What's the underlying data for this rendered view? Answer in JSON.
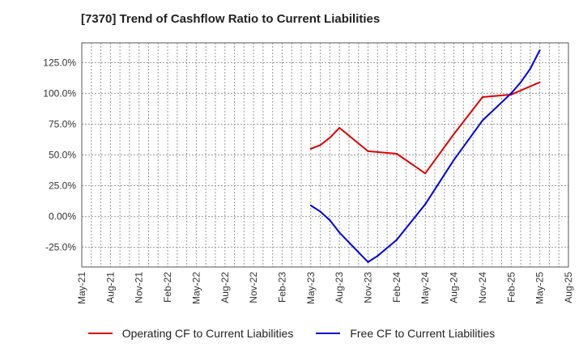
{
  "title": "[7370]  Trend of Cashflow Ratio to Current Liabilities",
  "chart_data": {
    "type": "line",
    "title": "[7370]  Trend of Cashflow Ratio to Current Liabilities",
    "xlabel": "",
    "ylabel": "",
    "x_ticks": [
      "May-21",
      "Aug-21",
      "Nov-21",
      "Feb-22",
      "May-22",
      "Aug-22",
      "Nov-22",
      "Feb-23",
      "May-23",
      "Aug-23",
      "Nov-23",
      "Feb-24",
      "May-24",
      "Aug-24",
      "Nov-24",
      "Feb-25",
      "May-25",
      "Aug-25"
    ],
    "y_ticks": [
      "125.0%",
      "100.0%",
      "75.0%",
      "50.0%",
      "25.0%",
      "0.00%",
      "-25.0%"
    ],
    "ylim": [
      -41,
      141
    ],
    "grid": true,
    "legend_position": "bottom",
    "series": [
      {
        "name": "Operating CF to Current Liabilities",
        "color": "#dd0000",
        "points": [
          {
            "x": "May-23",
            "y": 55
          },
          {
            "x": "Jun-23",
            "y": 58
          },
          {
            "x": "Jul-23",
            "y": 64
          },
          {
            "x": "Aug-23",
            "y": 72
          },
          {
            "x": "Nov-23",
            "y": 53
          },
          {
            "x": "Feb-24",
            "y": 51
          },
          {
            "x": "May-24",
            "y": 35
          },
          {
            "x": "Aug-24",
            "y": 67
          },
          {
            "x": "Nov-24",
            "y": 97
          },
          {
            "x": "Feb-25",
            "y": 99
          },
          {
            "x": "May-25",
            "y": 109
          }
        ]
      },
      {
        "name": "Free CF to Current Liabilities",
        "color": "#0000dd",
        "points": [
          {
            "x": "May-23",
            "y": 9
          },
          {
            "x": "Jun-23",
            "y": 4
          },
          {
            "x": "Jul-23",
            "y": -3
          },
          {
            "x": "Aug-23",
            "y": -13
          },
          {
            "x": "Nov-23",
            "y": -37
          },
          {
            "x": "Dec-23",
            "y": -32
          },
          {
            "x": "Feb-24",
            "y": -19
          },
          {
            "x": "May-24",
            "y": 10
          },
          {
            "x": "Aug-24",
            "y": 46
          },
          {
            "x": "Nov-24",
            "y": 78
          },
          {
            "x": "Feb-25",
            "y": 100
          },
          {
            "x": "Mar-25",
            "y": 109
          },
          {
            "x": "Apr-25",
            "y": 120
          },
          {
            "x": "May-25",
            "y": 135
          }
        ]
      }
    ]
  }
}
